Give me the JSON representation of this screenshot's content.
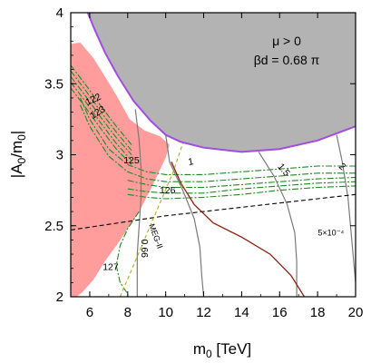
{
  "chart_data": {
    "type": "contour",
    "xlabel_main": "m",
    "xlabel_sub": "0",
    "xlabel_unit": " [TeV]",
    "ylabel_pre": "|A",
    "ylabel_sub1": "0",
    "ylabel_mid": "/m",
    "ylabel_sub2": "0",
    "ylabel_post": "|",
    "xlim": [
      5,
      20
    ],
    "ylim": [
      2,
      4
    ],
    "xticks": [
      "6",
      "8",
      "10",
      "12",
      "14",
      "16",
      "18",
      "20"
    ],
    "yticks": [
      "2",
      "2.5",
      "3",
      "3.5",
      "4"
    ],
    "annotation_line1": "μ > 0",
    "annotation_line2": "βd = 0.68 π",
    "colors": {
      "excluded_gray": "#b3b3b3",
      "boundary_purple": "#a24ce0",
      "excluded_red": "#ff9c9c",
      "higgs_green": "#1f8a1f",
      "meg_yellow": "#a5b313",
      "dark_red": "#8b1f10",
      "gray_line": "#7a7a7a",
      "black_dash": "#000000"
    },
    "regions": {
      "gray": [
        [
          5.9,
          4.0
        ],
        [
          6.2,
          3.9
        ],
        [
          6.8,
          3.72
        ],
        [
          7.5,
          3.55
        ],
        [
          8.3,
          3.38
        ],
        [
          9.2,
          3.24
        ],
        [
          10.0,
          3.14
        ],
        [
          10.8,
          3.09
        ],
        [
          12.0,
          3.05
        ],
        [
          14.0,
          3.02
        ],
        [
          16.0,
          3.04
        ],
        [
          18.0,
          3.1
        ],
        [
          20.0,
          3.2
        ],
        [
          20,
          4
        ],
        [
          5.9,
          4.0
        ]
      ],
      "red": [
        [
          5,
          3.78
        ],
        [
          5.5,
          3.79
        ],
        [
          6.2,
          3.68
        ],
        [
          6.8,
          3.55
        ],
        [
          7.4,
          3.42
        ],
        [
          8.1,
          3.25
        ],
        [
          8.9,
          3.17
        ],
        [
          9.7,
          3.13
        ],
        [
          10.2,
          3.07
        ],
        [
          10.0,
          2.98
        ],
        [
          9.3,
          2.78
        ],
        [
          8.6,
          2.6
        ],
        [
          8.0,
          2.48
        ],
        [
          7.4,
          2.36
        ],
        [
          6.8,
          2.25
        ],
        [
          6.2,
          2.12
        ],
        [
          5.6,
          2.03
        ],
        [
          5.3,
          2.0
        ],
        [
          5,
          2.0
        ]
      ]
    },
    "boundary_purple": [
      [
        5.9,
        4.0
      ],
      [
        6.2,
        3.9
      ],
      [
        6.8,
        3.72
      ],
      [
        7.5,
        3.55
      ],
      [
        8.3,
        3.38
      ],
      [
        9.2,
        3.24
      ],
      [
        10.0,
        3.14
      ],
      [
        10.8,
        3.09
      ],
      [
        12.0,
        3.05
      ],
      [
        14.0,
        3.02
      ],
      [
        16.0,
        3.04
      ],
      [
        18.0,
        3.1
      ],
      [
        20.0,
        3.2
      ]
    ],
    "higgs_contours": [
      {
        "label": "122",
        "points": [
          [
            5,
            3.63
          ],
          [
            5.8,
            3.49
          ],
          [
            6.6,
            3.34
          ],
          [
            7.4,
            3.2
          ],
          [
            8.2,
            3.07
          ]
        ]
      },
      {
        "label": "",
        "points": [
          [
            5,
            3.59
          ],
          [
            5.8,
            3.45
          ],
          [
            6.6,
            3.3
          ],
          [
            7.4,
            3.16
          ],
          [
            8.2,
            3.03
          ]
        ]
      },
      {
        "label": "123",
        "points": [
          [
            5,
            3.55
          ],
          [
            5.8,
            3.41
          ],
          [
            6.6,
            3.26
          ],
          [
            7.4,
            3.12
          ],
          [
            8.2,
            3.0
          ]
        ]
      },
      {
        "label": "",
        "points": [
          [
            5,
            3.51
          ],
          [
            5.8,
            3.37
          ],
          [
            6.6,
            3.22
          ],
          [
            7.4,
            3.08
          ],
          [
            8.2,
            2.96
          ]
        ]
      },
      {
        "label": "",
        "points": [
          [
            5,
            3.47
          ],
          [
            5.8,
            3.33
          ],
          [
            6.6,
            3.18
          ],
          [
            7.4,
            3.04
          ],
          [
            8.2,
            2.93
          ]
        ]
      },
      {
        "label": "125",
        "points": [
          [
            5.5,
            3.4
          ],
          [
            6.0,
            3.25
          ],
          [
            7.0,
            3.04
          ],
          [
            8.0,
            2.93
          ],
          [
            9.0,
            2.88
          ],
          [
            10.0,
            2.86
          ],
          [
            12.0,
            2.86
          ],
          [
            14.0,
            2.88
          ],
          [
            16.0,
            2.9
          ],
          [
            18.0,
            2.92
          ],
          [
            20.0,
            2.92
          ]
        ]
      },
      {
        "label": "",
        "points": [
          [
            5.5,
            3.35
          ],
          [
            6.0,
            3.2
          ],
          [
            7.0,
            2.99
          ],
          [
            8.0,
            2.88
          ],
          [
            9.0,
            2.83
          ],
          [
            10.0,
            2.81
          ],
          [
            12.0,
            2.81
          ],
          [
            14.0,
            2.83
          ],
          [
            16.0,
            2.85
          ],
          [
            18.0,
            2.87
          ],
          [
            20.0,
            2.87
          ]
        ]
      },
      {
        "label": "",
        "points": [
          [
            8.0,
            2.82
          ],
          [
            9.0,
            2.79
          ],
          [
            10.0,
            2.77
          ],
          [
            12.0,
            2.77
          ],
          [
            14.0,
            2.79
          ],
          [
            16.0,
            2.81
          ],
          [
            18.0,
            2.83
          ],
          [
            20.0,
            2.84
          ]
        ]
      },
      {
        "label": "126",
        "points": [
          [
            8.0,
            2.76
          ],
          [
            9.0,
            2.74
          ],
          [
            10.0,
            2.73
          ],
          [
            12.0,
            2.73
          ],
          [
            14.0,
            2.76
          ],
          [
            16.0,
            2.78
          ],
          [
            18.0,
            2.8
          ],
          [
            20.0,
            2.81
          ]
        ]
      },
      {
        "label": "",
        "points": [
          [
            8.0,
            2.72
          ],
          [
            9.0,
            2.7
          ],
          [
            10.0,
            2.69
          ],
          [
            12.0,
            2.7
          ],
          [
            14.0,
            2.72
          ],
          [
            16.0,
            2.75
          ],
          [
            18.0,
            2.77
          ],
          [
            20.0,
            2.78
          ]
        ]
      },
      {
        "label": "127",
        "points": [
          [
            8.6,
            2.6
          ],
          [
            8.0,
            2.48
          ],
          [
            7.6,
            2.36
          ],
          [
            7.4,
            2.22
          ],
          [
            7.6,
            2.1
          ],
          [
            8.0,
            2.02
          ]
        ]
      }
    ],
    "meg_line": {
      "label": "MEG-II",
      "points": [
        [
          7.6,
          2.0
        ],
        [
          8.3,
          2.22
        ],
        [
          9.0,
          2.44
        ],
        [
          9.7,
          2.66
        ],
        [
          10.4,
          2.88
        ],
        [
          10.9,
          3.08
        ]
      ]
    },
    "gray_contours": [
      {
        "label": "0.66",
        "points": [
          [
            8.4,
            3.32
          ],
          [
            8.6,
            3.1
          ],
          [
            8.7,
            2.9
          ],
          [
            8.7,
            2.7
          ],
          [
            8.6,
            2.5
          ],
          [
            8.5,
            2.3
          ],
          [
            8.5,
            2.1
          ],
          [
            8.5,
            2.0
          ]
        ]
      },
      {
        "label": "1",
        "points": [
          [
            10.0,
            3.14
          ],
          [
            10.2,
            2.95
          ],
          [
            10.9,
            2.75
          ],
          [
            11.5,
            2.55
          ],
          [
            11.8,
            2.35
          ],
          [
            11.9,
            2.15
          ],
          [
            12.0,
            2.0
          ]
        ]
      },
      {
        "label": "1.5",
        "points": [
          [
            14.9,
            3.02
          ],
          [
            15.7,
            2.85
          ],
          [
            16.4,
            2.65
          ],
          [
            16.8,
            2.45
          ],
          [
            16.9,
            2.25
          ],
          [
            16.9,
            2.0
          ]
        ]
      },
      {
        "label": "2",
        "points": [
          [
            19.0,
            3.14
          ],
          [
            19.3,
            2.95
          ],
          [
            19.6,
            2.7
          ],
          [
            19.8,
            2.4
          ],
          [
            20.0,
            2.1
          ]
        ]
      }
    ],
    "red_contour": {
      "label": "5×10⁻⁴",
      "points": [
        [
          10.3,
          2.95
        ],
        [
          10.8,
          2.8
        ],
        [
          11.5,
          2.65
        ],
        [
          12.5,
          2.52
        ],
        [
          14.0,
          2.42
        ],
        [
          15.5,
          2.3
        ],
        [
          16.6,
          2.15
        ],
        [
          17.3,
          2.0
        ]
      ]
    },
    "black_dash": [
      [
        5,
        2.47
      ],
      [
        6,
        2.49
      ],
      [
        7,
        2.51
      ],
      [
        8,
        2.53
      ],
      [
        9,
        2.55
      ],
      [
        10,
        2.57
      ],
      [
        12,
        2.6
      ],
      [
        14,
        2.63
      ],
      [
        16,
        2.66
      ],
      [
        18,
        2.69
      ],
      [
        20,
        2.72
      ]
    ]
  }
}
